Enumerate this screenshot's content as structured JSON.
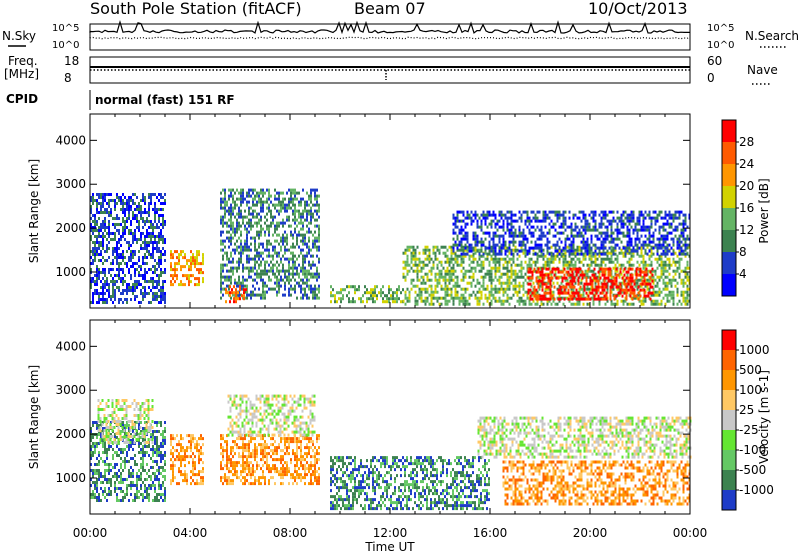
{
  "header": {
    "title": "South Pole Station (fitACF)",
    "beam": "Beam 07",
    "date": "10/Oct/2013"
  },
  "top_panels": {
    "nsky_label": "N.Sky",
    "nsky_ticks": [
      "10^5",
      "10^0"
    ],
    "nsearch_label": "N.Search",
    "nsearch_ticks": [
      "10^5",
      "10^0"
    ],
    "freq_label_1": "Freq.",
    "freq_label_2": "[MHz]",
    "freq_ticks": [
      "18",
      "8"
    ],
    "nave_label": "Nave",
    "nave_ticks": [
      "60",
      "0"
    ],
    "cpid_label": "CPID",
    "cpid_text": "normal (fast) 151 RF"
  },
  "chart_data": [
    {
      "type": "heatmap",
      "name": "power-panel",
      "ylabel": "Slant Range [km]",
      "ylim": [
        180,
        4600
      ],
      "yticks": [
        "1000",
        "2000",
        "3000",
        "4000"
      ],
      "xlim": [
        "00:00",
        "24:00"
      ],
      "colorbar_label": "Power [dB]",
      "colorbar_ticks": [
        "4",
        "8",
        "12",
        "16",
        "20",
        "24",
        "28"
      ],
      "colorbar_colors": [
        "#0000ff",
        "#1e3cc8",
        "#3c8250",
        "#64b464",
        "#d2d200",
        "#ff9600",
        "#ff5a00",
        "#ff0000"
      ],
      "regions": [
        {
          "t0": 0.0,
          "t1": 3.0,
          "r0": 300,
          "r1": 2800,
          "level": 1
        },
        {
          "t0": 3.2,
          "t1": 4.5,
          "r0": 700,
          "r1": 1500,
          "level": 5
        },
        {
          "t0": 5.2,
          "t1": 9.2,
          "r0": 400,
          "r1": 2900,
          "level": 2
        },
        {
          "t0": 5.4,
          "t1": 6.2,
          "r0": 300,
          "r1": 700,
          "level": 6
        },
        {
          "t0": 9.6,
          "t1": 12.5,
          "r0": 300,
          "r1": 700,
          "level": 3
        },
        {
          "t0": 12.5,
          "t1": 24.0,
          "r0": 300,
          "r1": 1600,
          "level": 3
        },
        {
          "t0": 14.5,
          "t1": 24.0,
          "r0": 1400,
          "r1": 2400,
          "level": 1
        },
        {
          "t0": 17.5,
          "t1": 22.5,
          "r0": 400,
          "r1": 1100,
          "level": 7
        }
      ]
    },
    {
      "type": "heatmap",
      "name": "velocity-panel",
      "ylabel": "Slant Range [km]",
      "ylim": [
        180,
        4600
      ],
      "yticks": [
        "1000",
        "2000",
        "3000",
        "4000"
      ],
      "xlim": [
        "00:00",
        "24:00"
      ],
      "xticks": [
        "00:00",
        "04:00",
        "08:00",
        "12:00",
        "16:00",
        "20:00",
        "00:00"
      ],
      "xlabel": "Time UT",
      "colorbar_label": "Velocity [m s-1]",
      "colorbar_ticks": [
        "1000",
        "500",
        "100",
        "25",
        "-25",
        "-100",
        "-500",
        "-1000"
      ],
      "colorbar_colors": [
        "#1e3cc8",
        "#3c8250",
        "#64c864",
        "#64e632",
        "#c8c8c8",
        "#ffc864",
        "#ff9600",
        "#ff6400",
        "#ff0000"
      ],
      "regions": [
        {
          "t0": 0.0,
          "t1": 3.0,
          "r0": 500,
          "r1": 2300,
          "level": 1
        },
        {
          "t0": 0.3,
          "t1": 2.5,
          "r0": 1800,
          "r1": 2800,
          "level": 4
        },
        {
          "t0": 3.2,
          "t1": 4.5,
          "r0": 900,
          "r1": 2000,
          "level": 6
        },
        {
          "t0": 5.2,
          "t1": 9.2,
          "r0": 900,
          "r1": 2000,
          "level": 6
        },
        {
          "t0": 5.5,
          "t1": 9.0,
          "r0": 2000,
          "r1": 2900,
          "level": 4
        },
        {
          "t0": 9.6,
          "t1": 16.0,
          "r0": 300,
          "r1": 1500,
          "level": 1
        },
        {
          "t0": 15.5,
          "t1": 24.0,
          "r0": 1500,
          "r1": 2400,
          "level": 4
        },
        {
          "t0": 16.5,
          "t1": 24.0,
          "r0": 400,
          "r1": 1400,
          "level": 6
        }
      ]
    }
  ]
}
